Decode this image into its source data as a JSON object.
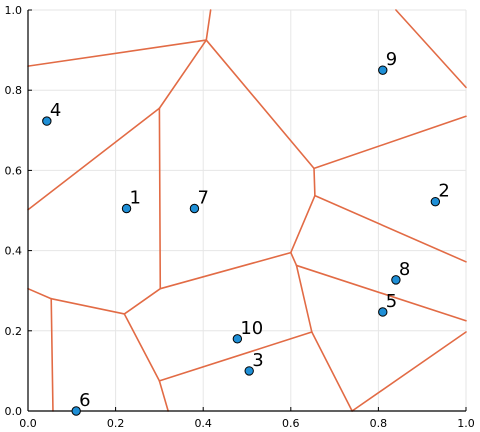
{
  "chart_data": {
    "type": "scatter",
    "title": "",
    "xlabel": "",
    "ylabel": "",
    "xlim": [
      0.0,
      1.0
    ],
    "ylim": [
      0.0,
      1.0
    ],
    "grid": true,
    "legend": "none",
    "x_ticks": [
      "0.0",
      "0.2",
      "0.4",
      "0.6",
      "0.8",
      "1.0"
    ],
    "y_ticks": [
      "0.0",
      "0.2",
      "0.4",
      "0.6",
      "0.8",
      "1.0"
    ],
    "colors": {
      "points": "#1f8fd6",
      "point_stroke": "#000000",
      "edges": "#e26b45",
      "grid": "#e6e6e6",
      "axis": "#000000"
    },
    "points": [
      {
        "label": "1",
        "x": 0.225,
        "y": 0.505
      },
      {
        "label": "2",
        "x": 0.93,
        "y": 0.522
      },
      {
        "label": "3",
        "x": 0.505,
        "y": 0.1
      },
      {
        "label": "4",
        "x": 0.043,
        "y": 0.723
      },
      {
        "label": "5",
        "x": 0.81,
        "y": 0.247
      },
      {
        "label": "6",
        "x": 0.11,
        "y": 0.0
      },
      {
        "label": "7",
        "x": 0.38,
        "y": 0.505
      },
      {
        "label": "8",
        "x": 0.84,
        "y": 0.327
      },
      {
        "label": "9",
        "x": 0.81,
        "y": 0.85
      },
      {
        "label": "10",
        "x": 0.478,
        "y": 0.18
      }
    ],
    "edges": [
      [
        [
          0.0,
          0.86
        ],
        [
          0.407,
          0.925
        ]
      ],
      [
        [
          0.407,
          0.925
        ],
        [
          0.417,
          1.0
        ]
      ],
      [
        [
          0.407,
          0.925
        ],
        [
          0.3,
          0.755
        ]
      ],
      [
        [
          0.407,
          0.925
        ],
        [
          0.653,
          0.605
        ]
      ],
      [
        [
          0.3,
          0.755
        ],
        [
          0.0,
          0.502
        ]
      ],
      [
        [
          0.3,
          0.755
        ],
        [
          0.302,
          0.305
        ]
      ],
      [
        [
          0.653,
          0.605
        ],
        [
          1.0,
          0.735
        ]
      ],
      [
        [
          0.653,
          0.605
        ],
        [
          0.655,
          0.537
        ]
      ],
      [
        [
          0.655,
          0.537
        ],
        [
          1.0,
          0.372
        ]
      ],
      [
        [
          0.655,
          0.537
        ],
        [
          0.6,
          0.395
        ]
      ],
      [
        [
          0.6,
          0.395
        ],
        [
          0.302,
          0.305
        ]
      ],
      [
        [
          0.6,
          0.395
        ],
        [
          0.613,
          0.363
        ]
      ],
      [
        [
          0.613,
          0.363
        ],
        [
          1.0,
          0.225
        ]
      ],
      [
        [
          0.613,
          0.363
        ],
        [
          0.648,
          0.197
        ]
      ],
      [
        [
          0.648,
          0.197
        ],
        [
          0.3,
          0.075
        ]
      ],
      [
        [
          0.648,
          0.197
        ],
        [
          0.74,
          0.0
        ]
      ],
      [
        [
          0.74,
          0.0
        ],
        [
          1.0,
          0.197
        ]
      ],
      [
        [
          0.302,
          0.305
        ],
        [
          0.22,
          0.242
        ]
      ],
      [
        [
          0.22,
          0.242
        ],
        [
          0.3,
          0.075
        ]
      ],
      [
        [
          0.22,
          0.242
        ],
        [
          0.053,
          0.28
        ]
      ],
      [
        [
          0.053,
          0.28
        ],
        [
          0.0,
          0.305
        ]
      ],
      [
        [
          0.053,
          0.28
        ],
        [
          0.057,
          0.0
        ]
      ],
      [
        [
          0.3,
          0.075
        ],
        [
          0.32,
          0.0
        ]
      ],
      [
        [
          0.84,
          1.0
        ],
        [
          1.0,
          0.807
        ]
      ]
    ]
  }
}
